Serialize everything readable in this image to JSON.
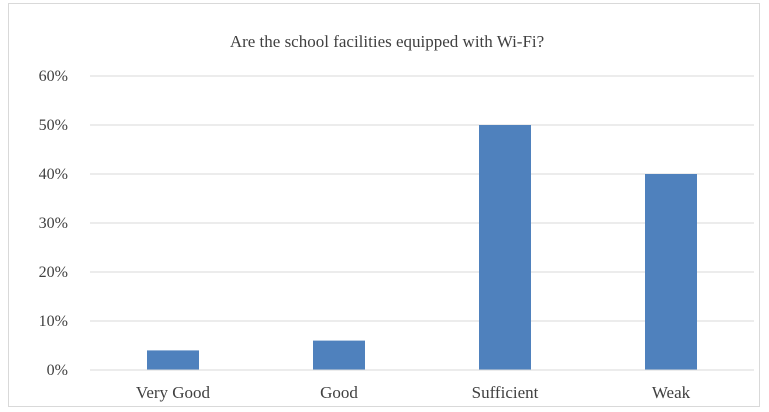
{
  "chart_data": {
    "type": "bar",
    "title": "Are the school facilities equipped with Wi-Fi?",
    "categories": [
      "Very Good",
      "Good",
      "Sufficient",
      "Weak"
    ],
    "values": [
      4,
      6,
      50,
      40
    ],
    "unit": "%",
    "ylim": [
      0,
      60
    ],
    "yticks": [
      "0%",
      "10%",
      "20%",
      "30%",
      "40%",
      "50%",
      "60%"
    ],
    "ytick_values": [
      0,
      10,
      20,
      30,
      40,
      50,
      60
    ],
    "grid": true,
    "legend": "none",
    "bar_color": "#4f81bd",
    "grid_color": "#d9d9d9",
    "text_color": "#404040"
  }
}
